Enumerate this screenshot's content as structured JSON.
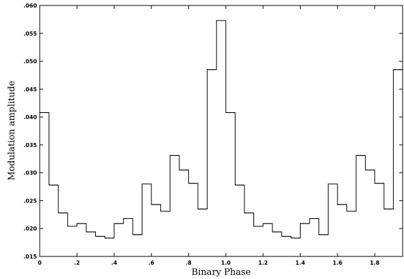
{
  "chart_data": {
    "type": "line",
    "style": "step",
    "title": "",
    "xlabel": "Binary Phase",
    "ylabel": "Modulation amplitude",
    "xlim": [
      0,
      1.95
    ],
    "ylim": [
      0.015,
      0.06
    ],
    "grid": false,
    "colors": {
      "line": "#000000",
      "frame": "#000000",
      "background": "#ffffff"
    },
    "x_ticks": [
      {
        "value": 0.0,
        "label": "0"
      },
      {
        "value": 0.2,
        "label": ".2"
      },
      {
        "value": 0.4,
        "label": ".4"
      },
      {
        "value": 0.6,
        "label": ".6"
      },
      {
        "value": 0.8,
        "label": ".8"
      },
      {
        "value": 1.0,
        "label": "1.0"
      },
      {
        "value": 1.2,
        "label": "1.2"
      },
      {
        "value": 1.4,
        "label": "1.4"
      },
      {
        "value": 1.6,
        "label": "1.6"
      },
      {
        "value": 1.8,
        "label": "1.8"
      }
    ],
    "y_ticks": [
      {
        "value": 0.015,
        "label": ".015"
      },
      {
        "value": 0.02,
        "label": ".020"
      },
      {
        "value": 0.025,
        "label": ".025"
      },
      {
        "value": 0.03,
        "label": ".030"
      },
      {
        "value": 0.035,
        "label": ".035"
      },
      {
        "value": 0.04,
        "label": ".040"
      },
      {
        "value": 0.045,
        "label": ".045"
      },
      {
        "value": 0.05,
        "label": ".050"
      },
      {
        "value": 0.055,
        "label": ".055"
      },
      {
        "value": 0.06,
        "label": ".060"
      }
    ],
    "bin_width": 0.05,
    "series": [
      {
        "bin_starts": [
          0.0,
          0.05,
          0.1,
          0.15,
          0.2,
          0.25,
          0.3,
          0.35,
          0.4,
          0.45,
          0.5,
          0.55,
          0.6,
          0.65,
          0.7,
          0.75,
          0.8,
          0.85,
          0.9,
          0.95,
          1.0,
          1.05,
          1.1,
          1.15,
          1.2,
          1.25,
          1.3,
          1.35,
          1.4,
          1.45,
          1.5,
          1.55,
          1.6,
          1.65,
          1.7,
          1.75,
          1.8,
          1.85,
          1.9
        ],
        "values": [
          0.0408,
          0.0278,
          0.0228,
          0.0204,
          0.0209,
          0.0194,
          0.0186,
          0.0183,
          0.0209,
          0.0218,
          0.0189,
          0.028,
          0.0243,
          0.0231,
          0.0331,
          0.0305,
          0.0281,
          0.0235,
          0.0485,
          0.0573,
          0.0408,
          0.0278,
          0.0228,
          0.0204,
          0.0209,
          0.0194,
          0.0186,
          0.0183,
          0.0209,
          0.0218,
          0.0189,
          0.028,
          0.0243,
          0.0231,
          0.0331,
          0.0305,
          0.0281,
          0.0235,
          0.0485
        ],
        "start_value": 0.0573
      }
    ]
  }
}
